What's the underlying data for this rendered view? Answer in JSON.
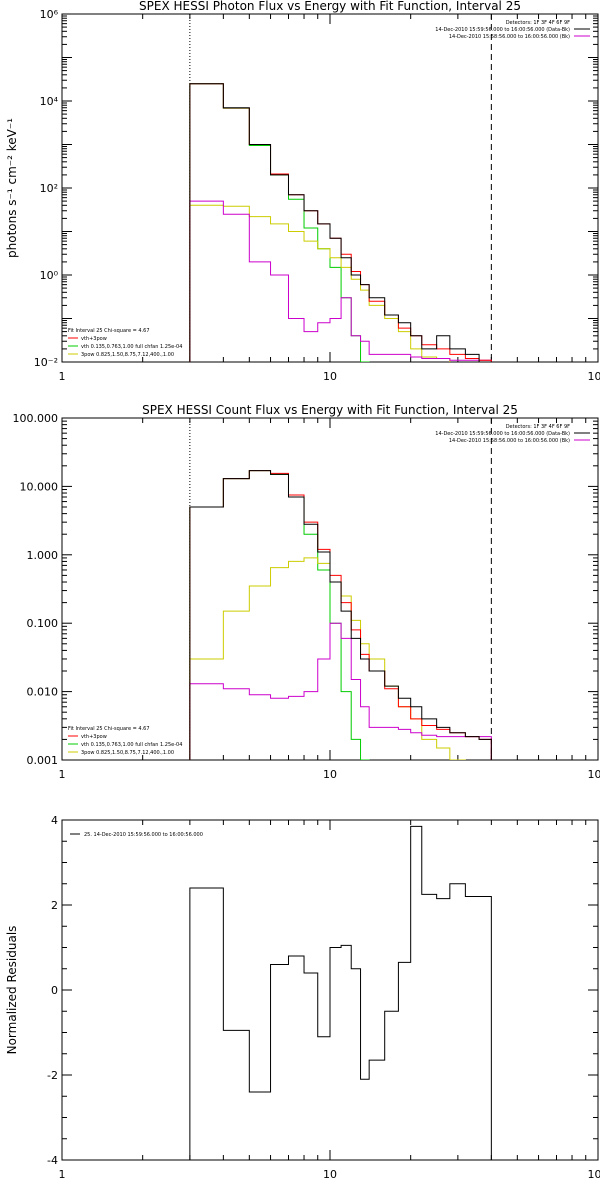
{
  "chart_data": [
    {
      "type": "line",
      "title": "SPEX HESSI Photon Flux vs Energy with Fit Function, Interval 25",
      "ylabel": "photons s⁻¹ cm⁻² keV⁻¹",
      "xlabel": "",
      "xscale": "log",
      "yscale": "log",
      "xlim": [
        1,
        100
      ],
      "ylim": [
        0.01,
        1000000
      ],
      "x_ticks": [
        1,
        10,
        100
      ],
      "x_tick_labels": [
        "1",
        "10",
        "100"
      ],
      "y_ticks": [
        0.01,
        1,
        100,
        10000,
        1000000
      ],
      "y_tick_labels": [
        "10⁻²",
        "10⁰",
        "10²",
        "10⁴",
        "10⁶"
      ],
      "vlines": [
        {
          "x": 3,
          "style": "dotted"
        },
        {
          "x": 40,
          "style": "dashed"
        }
      ],
      "legend_topright": [
        {
          "text": "Detectors: 1F 3F 4F 6F 9F",
          "color": "#000000"
        },
        {
          "text": "14-Dec-2010 15:59:56.000 to 16:00:56.000 (Data-Bk)",
          "color": "#000000"
        },
        {
          "text": "14-Dec-2010 15:58:56.000 to 16:00:56.000 (Bk)",
          "color": "#cc00cc"
        }
      ],
      "legend_bottomleft": [
        {
          "text": "Fit Interval 25   Chi-square = 4.67",
          "color": "#000000"
        },
        {
          "text": "vth+3pow",
          "color": "#ff0000"
        },
        {
          "text": "vth 0.135,0.763,1.00  full chfan 1.25e-04",
          "color": "#00cc00"
        },
        {
          "text": "3pow 0.825,1.50,8.75,7.12,400.,1.00",
          "color": "#cccc00"
        }
      ],
      "bin_edges": [
        3,
        4,
        5,
        6,
        7,
        8,
        9,
        10,
        11,
        12,
        13,
        14,
        16,
        18,
        20,
        22,
        25,
        28,
        32,
        36,
        40
      ],
      "series": [
        {
          "name": "Data-Bk",
          "color": "#000000",
          "values": [
            25000,
            7000,
            1000,
            200,
            70,
            30,
            15,
            7,
            2.5,
            1,
            0.6,
            0.3,
            0.12,
            0.08,
            0.04,
            0.02,
            0.04,
            0.02,
            0.015,
            0.01
          ]
        },
        {
          "name": "vth+3pow",
          "color": "#ff0000",
          "values": [
            25000,
            6900,
            1000,
            210,
            70,
            30,
            15,
            7,
            3,
            1.2,
            0.6,
            0.25,
            0.12,
            0.06,
            0.04,
            0.025,
            0.02,
            0.015,
            0.012,
            0.011
          ]
        },
        {
          "name": "vth",
          "color": "#00cc00",
          "values": [
            25000,
            6800,
            950,
            200,
            55,
            12,
            4,
            1.5,
            0.3,
            0.04,
            0.008
          ]
        },
        {
          "name": "3pow",
          "color": "#cccc00",
          "values": [
            40,
            38,
            22,
            15,
            10,
            6,
            4,
            2.5,
            1.5,
            0.8,
            0.45,
            0.2,
            0.1,
            0.05,
            0.02,
            0.013,
            0.012
          ]
        },
        {
          "name": "Bk",
          "color": "#cc00cc",
          "values": [
            50,
            25,
            2,
            1,
            0.1,
            0.05,
            0.08,
            0.1,
            0.3,
            0.04,
            0.03,
            0.015,
            0.015,
            0.015,
            0.013,
            0.012,
            0.012,
            0.011,
            0.011,
            0.011
          ]
        }
      ]
    },
    {
      "type": "line",
      "title": "SPEX HESSI Count Flux vs Energy with Fit Function, Interval 25",
      "ylabel": "",
      "xlabel": "",
      "xscale": "log",
      "yscale": "log",
      "xlim": [
        1,
        100
      ],
      "ylim": [
        0.001,
        100
      ],
      "x_ticks": [
        1,
        10,
        100
      ],
      "x_tick_labels": [
        "1",
        "10",
        "100"
      ],
      "y_ticks": [
        0.001,
        0.01,
        0.1,
        1,
        10,
        100
      ],
      "y_tick_labels": [
        "0.001",
        "0.010",
        "0.100",
        "1.000",
        "10.000",
        "100.000"
      ],
      "vlines": [
        {
          "x": 3,
          "style": "dotted"
        },
        {
          "x": 40,
          "style": "dashed"
        }
      ],
      "legend_topright": [
        {
          "text": "Detectors: 1F 3F 4F 6F 9F",
          "color": "#000000"
        },
        {
          "text": "14-Dec-2010 15:59:56.000 to 16:00:56.000 (Data-Bk)",
          "color": "#000000"
        },
        {
          "text": "14-Dec-2010 15:58:56.000 to 16:00:56.000 (Bk)",
          "color": "#cc00cc"
        }
      ],
      "legend_bottomleft": [
        {
          "text": "Fit Interval 25   Chi-square = 4.67",
          "color": "#000000"
        },
        {
          "text": "vth+3pow",
          "color": "#ff0000"
        },
        {
          "text": "vth 0.135,0.763,1.00  full chfan 1.25e-04",
          "color": "#00cc00"
        },
        {
          "text": "3pow 0.825,1.50,8.75,7.12,400.,1.00",
          "color": "#cccc00"
        }
      ],
      "bin_edges": [
        3,
        4,
        5,
        6,
        7,
        8,
        9,
        10,
        11,
        12,
        13,
        14,
        16,
        18,
        20,
        22,
        25,
        28,
        32,
        36,
        40
      ],
      "series": [
        {
          "name": "Data-Bk",
          "color": "#000000",
          "values": [
            5,
            13,
            17,
            15,
            7,
            2.8,
            1.1,
            0.4,
            0.15,
            0.06,
            0.03,
            0.02,
            0.012,
            0.008,
            0.006,
            0.004,
            0.003,
            0.0025,
            0.0022,
            0.002
          ]
        },
        {
          "name": "vth+3pow",
          "color": "#ff0000",
          "values": [
            5,
            13,
            17,
            15.5,
            7.5,
            3,
            1.2,
            0.5,
            0.2,
            0.08,
            0.035,
            0.02,
            0.011,
            0.006,
            0.004,
            0.0032,
            0.0028,
            0.0025,
            0.0022,
            0.002
          ]
        },
        {
          "name": "vth",
          "color": "#00cc00",
          "values": [
            5,
            13,
            17,
            15,
            7,
            2,
            0.6,
            0.1,
            0.01,
            0.002,
            0.0008
          ]
        },
        {
          "name": "3pow",
          "color": "#cccc00",
          "values": [
            0.03,
            0.15,
            0.35,
            0.65,
            0.8,
            0.9,
            0.75,
            0.4,
            0.25,
            0.11,
            0.05,
            0.03,
            0.012,
            0.006,
            0.004,
            0.002,
            0.0015,
            0.001
          ]
        },
        {
          "name": "Bk",
          "color": "#cc00cc",
          "values": [
            0.013,
            0.011,
            0.009,
            0.008,
            0.0085,
            0.01,
            0.03,
            0.1,
            0.06,
            0.015,
            0.006,
            0.003,
            0.003,
            0.0028,
            0.0025,
            0.0023,
            0.0022,
            0.0022,
            0.0022,
            0.0022
          ]
        }
      ]
    },
    {
      "type": "line",
      "title": "",
      "ylabel": "Normalized Residuals",
      "xlabel": "",
      "xscale": "log",
      "yscale": "linear",
      "xlim": [
        1,
        100
      ],
      "ylim": [
        -4,
        4
      ],
      "x_ticks": [
        1,
        10,
        100
      ],
      "x_tick_labels": [
        "1",
        "10",
        "100"
      ],
      "y_ticks": [
        -4,
        -2,
        0,
        2,
        4
      ],
      "y_tick_labels": [
        "-4",
        "-2",
        "0",
        "2",
        "4"
      ],
      "legend_topleft": [
        {
          "text": "25. 14-Dec-2010 15:59:56.000 to 16:00:56.000",
          "color": "#000000"
        }
      ],
      "bin_edges": [
        3,
        4,
        5,
        6,
        7,
        8,
        9,
        10,
        11,
        12,
        13,
        14,
        16,
        18,
        20,
        22,
        25,
        28,
        32,
        36,
        40
      ],
      "series": [
        {
          "name": "",
          "color": "#000000",
          "values": [
            2.4,
            -0.95,
            -2.4,
            0.6,
            0.8,
            0.4,
            -1.1,
            1.0,
            1.05,
            0.5,
            -2.1,
            -1.65,
            -0.5,
            0.65,
            3.85,
            2.25,
            2.15,
            2.5,
            2.2,
            2.2
          ]
        }
      ]
    }
  ]
}
